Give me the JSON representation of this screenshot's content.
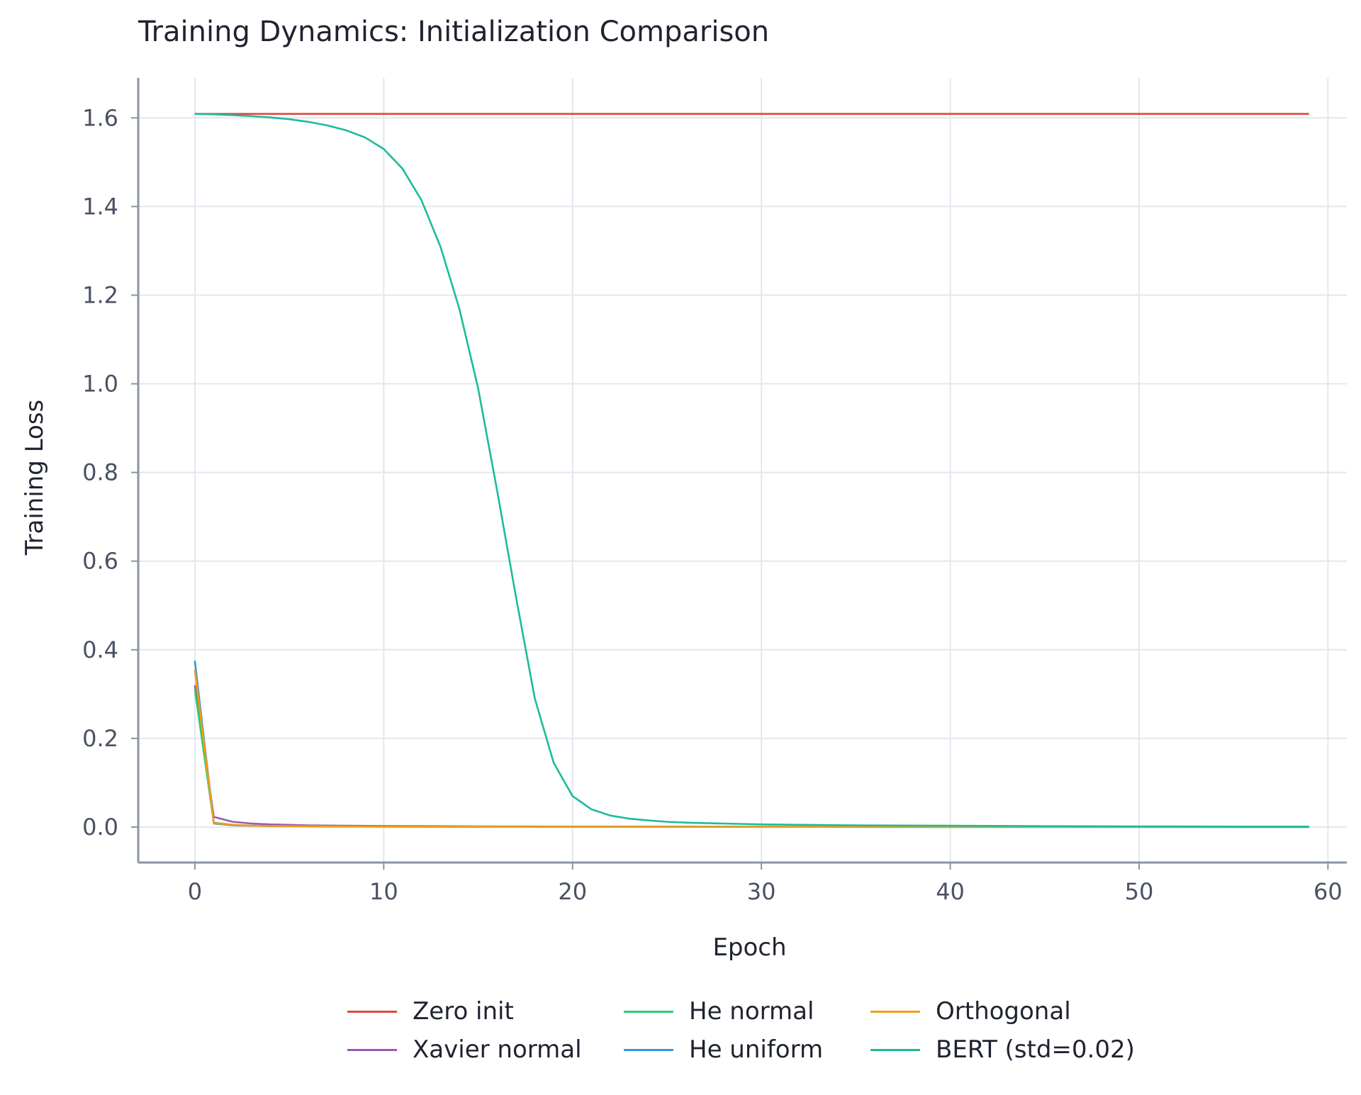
{
  "chart_data": {
    "type": "line",
    "title": "Training Dynamics: Initialization Comparison",
    "xlabel": "Epoch",
    "ylabel": "Training Loss",
    "xlim": [
      -3,
      61
    ],
    "ylim": [
      -0.08,
      1.69
    ],
    "x_ticks": [
      0,
      10,
      20,
      30,
      40,
      50,
      60
    ],
    "x_tick_labels": [
      "0",
      "10",
      "20",
      "30",
      "40",
      "50",
      "60"
    ],
    "y_ticks": [
      0.0,
      0.2,
      0.4,
      0.6,
      0.8,
      1.0,
      1.2,
      1.4,
      1.6
    ],
    "y_tick_labels": [
      "0.0",
      "0.2",
      "0.4",
      "0.6",
      "0.8",
      "1.0",
      "1.2",
      "1.4",
      "1.6"
    ],
    "grid": true,
    "legend_position": "bottom-center",
    "series": [
      {
        "name": "Zero init",
        "color": "#e04a3c",
        "x": [
          0,
          59
        ],
        "y": [
          1.609,
          1.609
        ]
      },
      {
        "name": "Xavier normal",
        "color": "#9b59b6",
        "x": [
          0,
          1,
          2,
          3,
          4,
          5,
          6,
          8,
          10,
          15,
          20,
          30,
          40,
          50,
          59
        ],
        "y": [
          0.32,
          0.023,
          0.012,
          0.008,
          0.006,
          0.005,
          0.004,
          0.003,
          0.0025,
          0.0015,
          0.001,
          0.0007,
          0.0005,
          0.0004,
          0.0003
        ]
      },
      {
        "name": "He normal",
        "color": "#2ecc71",
        "x": [
          0,
          1,
          2,
          3,
          5,
          10,
          20,
          30,
          40,
          50,
          59
        ],
        "y": [
          0.31,
          0.01,
          0.005,
          0.003,
          0.002,
          0.001,
          0.0006,
          0.0004,
          0.0003,
          0.0002,
          0.0002
        ]
      },
      {
        "name": "He uniform",
        "color": "#3498db",
        "x": [
          0,
          1,
          2,
          3,
          5,
          10,
          20,
          30,
          40,
          50,
          59
        ],
        "y": [
          0.375,
          0.008,
          0.004,
          0.003,
          0.002,
          0.001,
          0.0006,
          0.0004,
          0.0003,
          0.0002,
          0.0002
        ]
      },
      {
        "name": "Orthogonal",
        "color": "#f39c12",
        "x": [
          0,
          1,
          2,
          3,
          5,
          10,
          20,
          30,
          40,
          50,
          59
        ],
        "y": [
          0.355,
          0.009,
          0.005,
          0.003,
          0.002,
          0.001,
          0.0006,
          0.0004,
          0.0003,
          0.0002,
          0.0002
        ]
      },
      {
        "name": "BERT (std=0.02)",
        "color": "#1abc9c",
        "x": [
          0,
          1,
          2,
          3,
          4,
          5,
          6,
          7,
          8,
          9,
          10,
          11,
          12,
          13,
          14,
          15,
          16,
          17,
          18,
          19,
          20,
          21,
          22,
          23,
          24,
          25,
          26,
          28,
          30,
          35,
          40,
          45,
          50,
          55,
          59
        ],
        "y": [
          1.609,
          1.608,
          1.606,
          1.604,
          1.601,
          1.597,
          1.591,
          1.583,
          1.572,
          1.556,
          1.53,
          1.485,
          1.414,
          1.31,
          1.17,
          0.99,
          0.76,
          0.52,
          0.29,
          0.145,
          0.07,
          0.04,
          0.026,
          0.019,
          0.015,
          0.012,
          0.01,
          0.008,
          0.006,
          0.004,
          0.003,
          0.002,
          0.0015,
          0.001,
          0.001
        ]
      }
    ]
  }
}
